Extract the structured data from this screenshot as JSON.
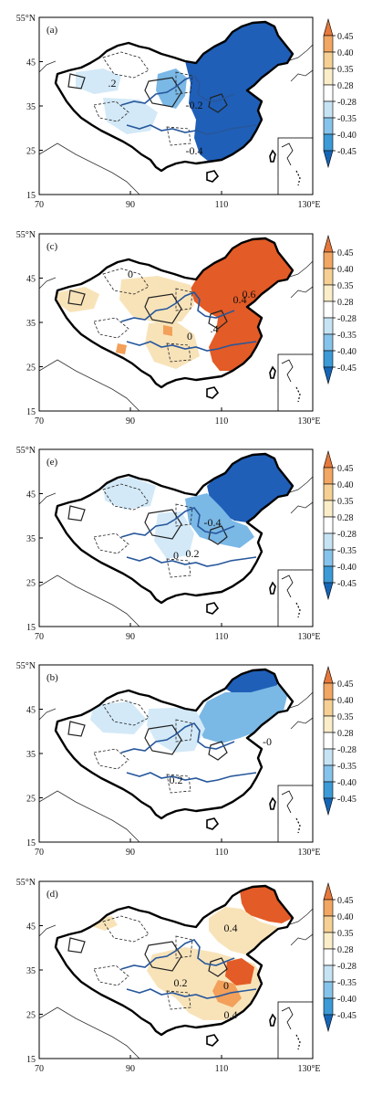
{
  "panels": [
    {
      "label": "(a)",
      "scheme": "blue",
      "contour_labels": [
        ".2",
        "-0.2",
        "-0.4"
      ]
    },
    {
      "label": "(c)",
      "scheme": "red",
      "contour_labels": [
        "0",
        ".4",
        "0.6",
        "0.4",
        "0"
      ]
    },
    {
      "label": "(e)",
      "scheme": "blue",
      "contour_labels": [
        "-0.4",
        "0",
        "0.2"
      ]
    },
    {
      "label": "(b)",
      "scheme": "blue",
      "contour_labels": [
        "-0",
        "0.2"
      ]
    },
    {
      "label": "(d)",
      "scheme": "red",
      "contour_labels": [
        "0.4",
        "0.2",
        "0",
        "0.4"
      ]
    }
  ],
  "axes": {
    "x_ticks": [
      "70",
      "90",
      "110",
      "130°E"
    ],
    "y_ticks": [
      "55°N",
      "45",
      "35",
      "25",
      "15"
    ]
  },
  "colorbar": {
    "labels": [
      "0.45",
      "0.40",
      "0.35",
      "0.28",
      "-0.28",
      "-0.35",
      "-0.40",
      "-0.45"
    ],
    "colors": [
      "#e5783a",
      "#f1a663",
      "#f6cf94",
      "#fbedc8",
      "#ffffff",
      "#c6e3f4",
      "#86c3ea",
      "#3c9ad6",
      "#1565b6"
    ]
  },
  "colors": {
    "blue_strong": "#1f5fb8",
    "blue_mid": "#7ab8e6",
    "blue_light": "#d3e9f7",
    "red_strong": "#e35b26",
    "red_mid": "#f2a05a",
    "red_light": "#f8e3b9",
    "river": "#27579c",
    "border": "#000000"
  }
}
